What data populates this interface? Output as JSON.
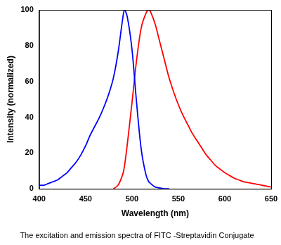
{
  "chart_data": {
    "type": "line",
    "title": "The excitation and emission spectra of FITC -Streptavidin Conjugate",
    "x_label": "Wavelength (nm)",
    "y_label": "Intensity (normalized)",
    "x": [
      400,
      405,
      410,
      415,
      420,
      425,
      430,
      435,
      440,
      445,
      450,
      455,
      460,
      465,
      470,
      475,
      480,
      485,
      490,
      492,
      495,
      500,
      505,
      510,
      515,
      518,
      520,
      525,
      530,
      535,
      540,
      545,
      550,
      555,
      560,
      565,
      570,
      575,
      580,
      585,
      590,
      595,
      600,
      605,
      610,
      615,
      620,
      625,
      630,
      635,
      640,
      645,
      650
    ],
    "series": [
      {
        "color": "#0000ff",
        "values": [
          2,
          2,
          3,
          4,
          5,
          7,
          9,
          12,
          15,
          19,
          24,
          30,
          35,
          40,
          46,
          53,
          62,
          76,
          95,
          100,
          96,
          78,
          48,
          22,
          8,
          4,
          3,
          1,
          0.5,
          0,
          0,
          null,
          null,
          null,
          null,
          null,
          null,
          null,
          null,
          null,
          null,
          null,
          null,
          null,
          null,
          null,
          null,
          null,
          null,
          null,
          null,
          null,
          null
        ]
      },
      {
        "color": "#ff0000",
        "values": [
          null,
          null,
          null,
          null,
          null,
          null,
          null,
          null,
          null,
          null,
          null,
          null,
          null,
          null,
          null,
          null,
          0,
          2,
          8,
          13,
          25,
          48,
          72,
          90,
          98,
          100,
          99,
          92,
          82,
          72,
          62,
          54,
          47,
          41,
          36,
          31,
          27,
          23,
          19,
          16,
          13,
          11,
          9,
          7.5,
          6,
          5,
          4,
          3.5,
          3,
          2.5,
          2,
          1.5,
          1
        ]
      }
    ],
    "xlim": [
      400,
      650
    ],
    "xticks": [
      400,
      450,
      500,
      550,
      600,
      650
    ],
    "ylim": [
      0,
      100
    ],
    "yticks": [
      0,
      20,
      40,
      60,
      80,
      100
    ],
    "grid": false
  }
}
